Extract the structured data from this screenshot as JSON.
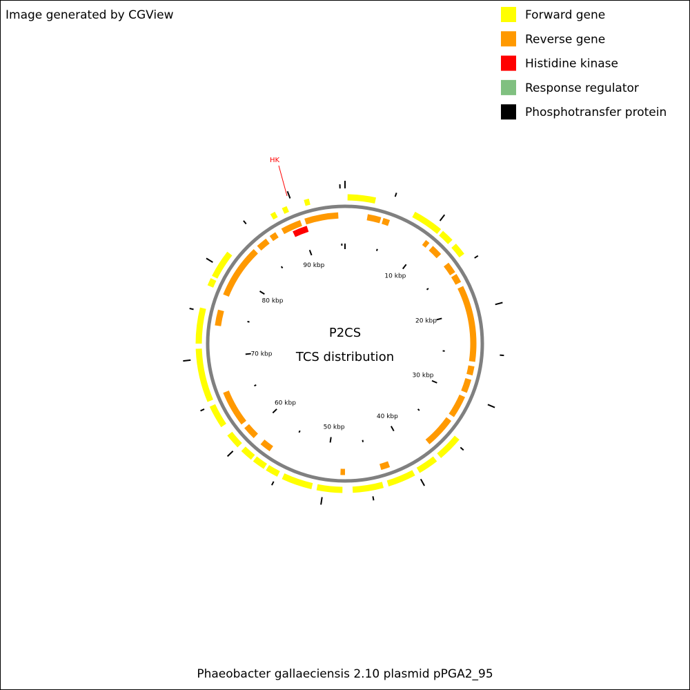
{
  "header": "Image generated by CGView",
  "legend": [
    {
      "label": "Forward gene",
      "color": "#ffff00"
    },
    {
      "label": "Reverse gene",
      "color": "#ff9900"
    },
    {
      "label": "Histidine kinase",
      "color": "#ff0000"
    },
    {
      "label": "Response regulator",
      "color": "#80c080"
    },
    {
      "label": "Phosphotransfer protein",
      "color": "#000000"
    }
  ],
  "annotation": "HK",
  "center": {
    "title": "P2CS",
    "subtitle": "TCS distribution"
  },
  "ruler_labels": [
    "10 kbp",
    "20 kbp",
    "30 kbp",
    "40 kbp",
    "50 kbp",
    "60 kbp",
    "70 kbp",
    "80 kbp",
    "90 kbp"
  ],
  "caption": "Phaeobacter gallaeciensis 2.10 plasmid pPGA2_95"
}
